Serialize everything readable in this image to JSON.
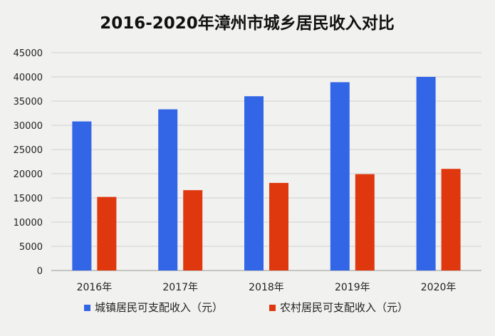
{
  "chart_data": {
    "type": "bar",
    "title": "2016-2020年漳州市城乡居民收入对比",
    "categories": [
      "2016年",
      "2017年",
      "2018年",
      "2019年",
      "2020年"
    ],
    "series": [
      {
        "name": "城镇居民可支配收入（元）",
        "color": "#3366e6",
        "values": [
          30800,
          33300,
          36000,
          38900,
          40000
        ]
      },
      {
        "name": "农村居民可支配收入（元）",
        "color": "#e0380e",
        "values": [
          15200,
          16600,
          18100,
          19900,
          21000
        ]
      }
    ],
    "xlabel": "",
    "ylabel": "",
    "ylim": [
      0,
      45000
    ],
    "yticks": [
      "0",
      "5000",
      "10000",
      "15000",
      "20000",
      "25000",
      "30000",
      "35000",
      "40000",
      "45000"
    ],
    "grid": true,
    "legend_position": "bottom"
  }
}
